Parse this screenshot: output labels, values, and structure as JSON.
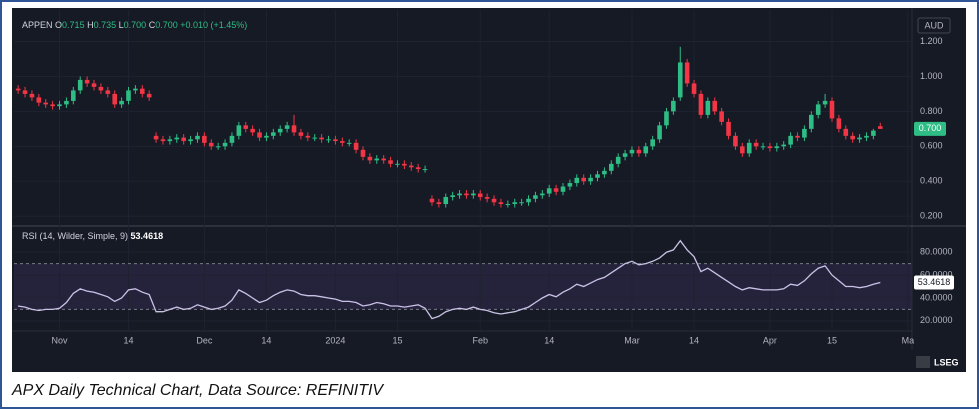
{
  "header": {
    "symbol": "APPEN",
    "open_label": "O",
    "open": "0.715",
    "high_label": "H",
    "high": "0.735",
    "low_label": "L",
    "low": "0.700",
    "close_label": "C",
    "close": "0.700",
    "change": "+0.010 (+1.45%)",
    "currency": "AUD",
    "logo": "LSEG"
  },
  "caption": "APX Daily Technical Chart, Data Source: REFINITIV",
  "chart_data": [
    {
      "type": "candlestick",
      "up_color": "#2ebd85",
      "down_color": "#f23645",
      "last_label": "0.700",
      "open": [
        0.93,
        0.92,
        0.9,
        0.88,
        0.85,
        0.84,
        0.83,
        0.84,
        0.86,
        0.92,
        0.98,
        0.96,
        0.94,
        0.92,
        0.9,
        0.84,
        0.86,
        0.92,
        0.93,
        0.9,
        0.66,
        0.64,
        0.63,
        0.64,
        0.65,
        0.63,
        0.64,
        0.66,
        0.62,
        0.6,
        0.6,
        0.62,
        0.66,
        0.72,
        0.7,
        0.68,
        0.65,
        0.66,
        0.68,
        0.7,
        0.72,
        0.68,
        0.66,
        0.65,
        0.65,
        0.64,
        0.64,
        0.63,
        0.62,
        0.62,
        0.58,
        0.54,
        0.52,
        0.53,
        0.52,
        0.5,
        0.5,
        0.49,
        0.48,
        0.47,
        0.3,
        0.28,
        0.27,
        0.31,
        0.32,
        0.33,
        0.32,
        0.33,
        0.31,
        0.3,
        0.28,
        0.27,
        0.27,
        0.28,
        0.28,
        0.3,
        0.32,
        0.33,
        0.36,
        0.34,
        0.37,
        0.39,
        0.42,
        0.4,
        0.42,
        0.44,
        0.46,
        0.5,
        0.54,
        0.56,
        0.58,
        0.56,
        0.6,
        0.64,
        0.72,
        0.8,
        0.88,
        1.08,
        0.96,
        0.9,
        0.78,
        0.86,
        0.8,
        0.74,
        0.66,
        0.6,
        0.56,
        0.62,
        0.6,
        0.6,
        0.59,
        0.6,
        0.61,
        0.66,
        0.65,
        0.7,
        0.78,
        0.84,
        0.86,
        0.76,
        0.7,
        0.66,
        0.64,
        0.65,
        0.66,
        0.715
      ],
      "high": [
        0.95,
        0.94,
        0.92,
        0.9,
        0.87,
        0.86,
        0.86,
        0.88,
        0.94,
        1.0,
        1.0,
        0.98,
        0.96,
        0.94,
        0.92,
        0.88,
        0.94,
        0.95,
        0.95,
        0.92,
        0.68,
        0.66,
        0.66,
        0.67,
        0.67,
        0.66,
        0.68,
        0.68,
        0.64,
        0.62,
        0.64,
        0.68,
        0.74,
        0.74,
        0.72,
        0.7,
        0.68,
        0.7,
        0.72,
        0.74,
        0.78,
        0.7,
        0.68,
        0.67,
        0.67,
        0.66,
        0.66,
        0.65,
        0.64,
        0.64,
        0.6,
        0.56,
        0.55,
        0.55,
        0.54,
        0.52,
        0.52,
        0.51,
        0.5,
        0.49,
        0.32,
        0.3,
        0.33,
        0.34,
        0.35,
        0.35,
        0.35,
        0.35,
        0.33,
        0.32,
        0.3,
        0.29,
        0.3,
        0.3,
        0.32,
        0.34,
        0.35,
        0.38,
        0.38,
        0.39,
        0.41,
        0.44,
        0.44,
        0.44,
        0.46,
        0.48,
        0.52,
        0.56,
        0.58,
        0.6,
        0.6,
        0.62,
        0.66,
        0.74,
        0.82,
        0.88,
        1.17,
        1.1,
        0.98,
        0.92,
        0.88,
        0.88,
        0.82,
        0.76,
        0.68,
        0.62,
        0.64,
        0.64,
        0.62,
        0.62,
        0.62,
        0.63,
        0.68,
        0.68,
        0.72,
        0.8,
        0.86,
        0.9,
        0.88,
        0.78,
        0.72,
        0.68,
        0.67,
        0.68,
        0.7,
        0.735
      ],
      "low": [
        0.9,
        0.88,
        0.86,
        0.83,
        0.82,
        0.81,
        0.81,
        0.82,
        0.84,
        0.9,
        0.94,
        0.92,
        0.9,
        0.88,
        0.82,
        0.82,
        0.84,
        0.9,
        0.88,
        0.86,
        0.62,
        0.61,
        0.61,
        0.62,
        0.61,
        0.61,
        0.62,
        0.6,
        0.58,
        0.58,
        0.58,
        0.6,
        0.64,
        0.68,
        0.66,
        0.63,
        0.63,
        0.64,
        0.66,
        0.68,
        0.66,
        0.64,
        0.63,
        0.63,
        0.62,
        0.62,
        0.61,
        0.6,
        0.6,
        0.56,
        0.52,
        0.5,
        0.5,
        0.5,
        0.48,
        0.48,
        0.47,
        0.46,
        0.45,
        0.45,
        0.26,
        0.25,
        0.25,
        0.29,
        0.3,
        0.3,
        0.3,
        0.29,
        0.28,
        0.26,
        0.25,
        0.25,
        0.25,
        0.26,
        0.26,
        0.28,
        0.3,
        0.31,
        0.32,
        0.32,
        0.35,
        0.37,
        0.38,
        0.38,
        0.4,
        0.42,
        0.44,
        0.48,
        0.52,
        0.54,
        0.54,
        0.54,
        0.58,
        0.62,
        0.7,
        0.78,
        0.86,
        0.94,
        0.88,
        0.76,
        0.76,
        0.78,
        0.72,
        0.64,
        0.58,
        0.54,
        0.54,
        0.58,
        0.58,
        0.57,
        0.57,
        0.58,
        0.59,
        0.63,
        0.63,
        0.68,
        0.76,
        0.82,
        0.74,
        0.68,
        0.64,
        0.62,
        0.62,
        0.63,
        0.64,
        0.7
      ],
      "close": [
        0.92,
        0.9,
        0.88,
        0.85,
        0.84,
        0.83,
        0.84,
        0.86,
        0.92,
        0.98,
        0.96,
        0.94,
        0.92,
        0.9,
        0.84,
        0.86,
        0.92,
        0.93,
        0.9,
        0.88,
        0.64,
        0.63,
        0.64,
        0.65,
        0.63,
        0.64,
        0.66,
        0.62,
        0.6,
        0.6,
        0.62,
        0.66,
        0.72,
        0.7,
        0.68,
        0.65,
        0.66,
        0.68,
        0.7,
        0.72,
        0.68,
        0.66,
        0.65,
        0.65,
        0.64,
        0.64,
        0.63,
        0.62,
        0.62,
        0.58,
        0.54,
        0.52,
        0.53,
        0.52,
        0.5,
        0.5,
        0.49,
        0.48,
        0.47,
        0.47,
        0.28,
        0.27,
        0.31,
        0.32,
        0.33,
        0.32,
        0.33,
        0.31,
        0.3,
        0.28,
        0.27,
        0.27,
        0.28,
        0.28,
        0.3,
        0.32,
        0.33,
        0.36,
        0.34,
        0.37,
        0.39,
        0.42,
        0.4,
        0.42,
        0.44,
        0.46,
        0.5,
        0.54,
        0.56,
        0.58,
        0.56,
        0.6,
        0.64,
        0.72,
        0.8,
        0.86,
        1.08,
        0.96,
        0.9,
        0.78,
        0.86,
        0.8,
        0.74,
        0.66,
        0.6,
        0.56,
        0.62,
        0.6,
        0.6,
        0.59,
        0.6,
        0.61,
        0.66,
        0.65,
        0.7,
        0.78,
        0.84,
        0.86,
        0.76,
        0.7,
        0.66,
        0.64,
        0.65,
        0.66,
        0.69,
        0.7
      ],
      "xlim": [
        -0.6,
        129.6
      ],
      "ylim": [
        0.15,
        1.38
      ],
      "yticks": [
        {
          "value": 1.2,
          "label": "1.200"
        },
        {
          "value": 1.0,
          "label": "1.000"
        },
        {
          "value": 0.8,
          "label": "0.800"
        },
        {
          "value": 0.6,
          "label": "0.600"
        },
        {
          "value": 0.4,
          "label": "0.400"
        },
        {
          "value": 0.2,
          "label": "0.200"
        }
      ]
    },
    {
      "type": "line",
      "title": "RSI (14, Wilder, Simple, 9)",
      "color": "#c9c2e6",
      "levels": [
        70,
        30
      ],
      "band_color": "#7e57c2",
      "values": [
        33,
        32,
        30,
        29,
        30,
        30,
        31,
        36,
        44,
        48,
        46,
        45,
        43,
        41,
        37,
        40,
        47,
        48,
        45,
        43,
        28,
        28,
        30,
        32,
        30,
        31,
        34,
        32,
        30,
        31,
        33,
        38,
        47,
        44,
        40,
        36,
        38,
        42,
        45,
        47,
        46,
        43,
        42,
        42,
        41,
        40,
        39,
        37,
        37,
        36,
        33,
        34,
        36,
        35,
        33,
        33,
        32,
        33,
        34,
        31,
        22,
        24,
        28,
        30,
        31,
        30,
        32,
        30,
        29,
        27,
        26,
        27,
        28,
        30,
        32,
        36,
        40,
        43,
        41,
        45,
        48,
        52,
        50,
        53,
        56,
        58,
        62,
        66,
        70,
        72,
        69,
        70,
        72,
        75,
        80,
        82,
        90,
        82,
        76,
        63,
        66,
        62,
        58,
        54,
        50,
        47,
        49,
        48,
        47,
        47,
        47,
        48,
        52,
        51,
        55,
        61,
        66,
        68,
        60,
        55,
        50,
        50,
        49,
        50,
        52,
        53.4618
      ],
      "xlim": [
        -0.6,
        129.6
      ],
      "ylim": [
        12,
        102
      ],
      "yticks": [
        {
          "value": 80,
          "label": "80.0000"
        },
        {
          "value": 60,
          "label": "60.0000"
        },
        {
          "value": 40,
          "label": "40.0000"
        },
        {
          "value": 20,
          "label": "20.0000"
        }
      ],
      "xticks": [
        {
          "value": 6,
          "label": "Nov"
        },
        {
          "value": 16,
          "label": "14"
        },
        {
          "value": 27,
          "label": "Dec"
        },
        {
          "value": 36,
          "label": "14"
        },
        {
          "value": 46,
          "label": "2024"
        },
        {
          "value": 55,
          "label": "15"
        },
        {
          "value": 67,
          "label": "Feb"
        },
        {
          "value": 77,
          "label": "14"
        },
        {
          "value": 89,
          "label": "Mar"
        },
        {
          "value": 98,
          "label": "14"
        },
        {
          "value": 109,
          "label": "Apr"
        },
        {
          "value": 118,
          "label": "15"
        },
        {
          "value": 129,
          "label": "Ma"
        }
      ]
    }
  ]
}
